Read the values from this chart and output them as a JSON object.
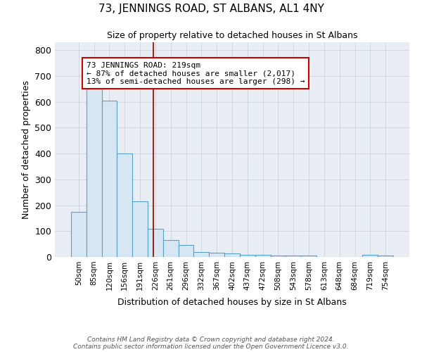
{
  "title": "73, JENNINGS ROAD, ST ALBANS, AL1 4NY",
  "subtitle": "Size of property relative to detached houses in St Albans",
  "xlabel": "Distribution of detached houses by size in St Albans",
  "ylabel": "Number of detached properties",
  "footer_line1": "Contains HM Land Registry data © Crown copyright and database right 2024.",
  "footer_line2": "Contains public sector information licensed under the Open Government Licence v3.0.",
  "bin_labels": [
    "50sqm",
    "85sqm",
    "120sqm",
    "156sqm",
    "191sqm",
    "226sqm",
    "261sqm",
    "296sqm",
    "332sqm",
    "367sqm",
    "402sqm",
    "437sqm",
    "472sqm",
    "508sqm",
    "543sqm",
    "578sqm",
    "613sqm",
    "648sqm",
    "684sqm",
    "719sqm",
    "754sqm"
  ],
  "bar_values": [
    175,
    650,
    605,
    400,
    215,
    108,
    65,
    47,
    18,
    17,
    13,
    7,
    8,
    5,
    6,
    5,
    0,
    0,
    0,
    7,
    5
  ],
  "bar_color": "#d6e6f2",
  "bar_edge_color": "#5a9fc4",
  "annotation_line1": "73 JENNINGS ROAD: 219sqm",
  "annotation_line2": "← 87% of detached houses are smaller (2,017)",
  "annotation_line3": "13% of semi-detached houses are larger (298) →",
  "vline_x_index": 4.88,
  "ylim": [
    0,
    830
  ],
  "bg_color": "#e8eef4",
  "grid_color": "#c8d4de",
  "title_fontsize": 11,
  "subtitle_fontsize": 9
}
